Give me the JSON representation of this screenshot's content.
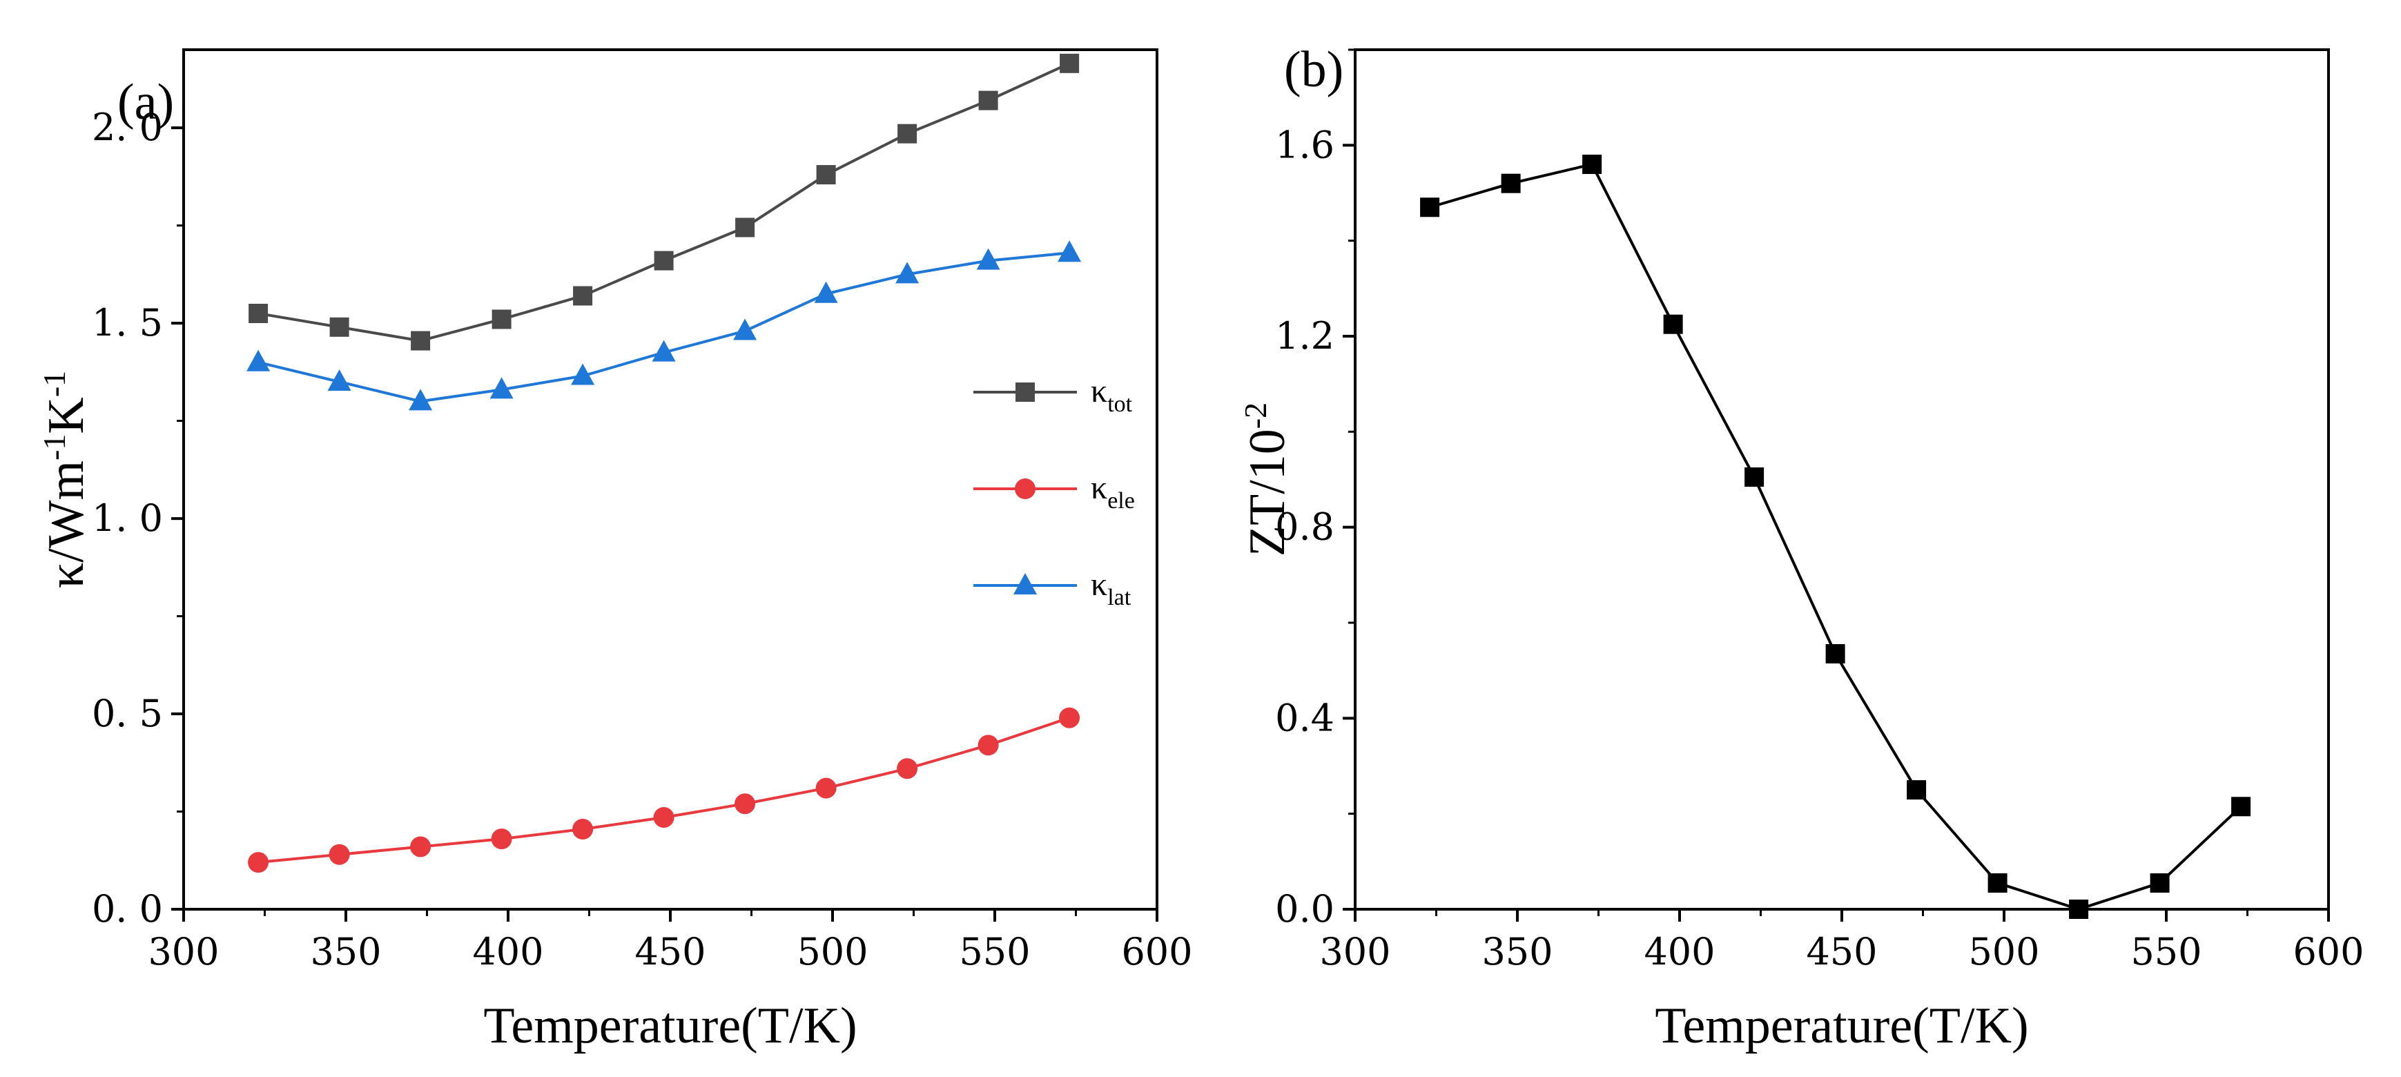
{
  "chart_data": [
    {
      "type": "line",
      "panel_label": "(a)",
      "title": "",
      "xlabel": "Temperature(T/K)",
      "ylabel": {
        "base": "κ/Wm",
        "sup1": "-1",
        "mid": "K",
        "sup2": "-1"
      },
      "xlim": [
        300,
        600
      ],
      "ylim": [
        0,
        2.2
      ],
      "xticks": [
        300,
        350,
        400,
        450,
        500,
        550,
        600
      ],
      "yticks": [
        0.0,
        0.5,
        1.0,
        1.5,
        2.0
      ],
      "xtick_labels": [
        "300",
        "350",
        "400",
        "450",
        "500",
        "550",
        "600"
      ],
      "ytick_labels": [
        "0. 0",
        "0. 5",
        "1. 0",
        "1. 5",
        "2. 0"
      ],
      "legend_position": "center-right",
      "x": [
        323,
        348,
        373,
        398,
        423,
        448,
        473,
        498,
        523,
        548,
        573
      ],
      "series": [
        {
          "name": "κtot",
          "legend_base": "κ",
          "legend_sub": "tot",
          "marker": "square",
          "color": "#4a4a4a",
          "values": [
            1.525,
            1.49,
            1.455,
            1.51,
            1.57,
            1.66,
            1.745,
            1.88,
            1.985,
            2.07,
            2.165
          ]
        },
        {
          "name": "κele",
          "legend_base": "κ",
          "legend_sub": "ele",
          "marker": "circle",
          "color": "#e8393f",
          "values": [
            0.12,
            0.14,
            0.16,
            0.18,
            0.205,
            0.235,
            0.27,
            0.31,
            0.36,
            0.42,
            0.49
          ]
        },
        {
          "name": "κlat",
          "legend_base": "κ",
          "legend_sub": "lat",
          "marker": "triangle",
          "color": "#1f77d8",
          "values": [
            1.4,
            1.35,
            1.3,
            1.33,
            1.365,
            1.425,
            1.48,
            1.575,
            1.625,
            1.66,
            1.68
          ]
        }
      ]
    },
    {
      "type": "line",
      "panel_label": "(b)",
      "title": "",
      "xlabel": "Temperature(T/K)",
      "ylabel": {
        "base": "ZT/10",
        "sup1": "-2"
      },
      "xlim": [
        300,
        600
      ],
      "ylim": [
        0,
        1.8
      ],
      "xticks": [
        300,
        350,
        400,
        450,
        500,
        550,
        600
      ],
      "yticks": [
        0.0,
        0.4,
        0.8,
        1.2,
        1.6
      ],
      "xtick_labels": [
        "300",
        "350",
        "400",
        "450",
        "500",
        "550",
        "600"
      ],
      "ytick_labels": [
        "0.0",
        "0.4",
        "0.8",
        "1.2",
        "1.6"
      ],
      "x": [
        323,
        348,
        373,
        398,
        423,
        448,
        473,
        498,
        523,
        548,
        573
      ],
      "series": [
        {
          "name": "ZT",
          "marker": "square",
          "color": "#000000",
          "values": [
            1.47,
            1.52,
            1.56,
            1.225,
            0.905,
            0.535,
            0.25,
            0.055,
            0.0,
            0.055,
            0.215
          ]
        }
      ]
    }
  ]
}
